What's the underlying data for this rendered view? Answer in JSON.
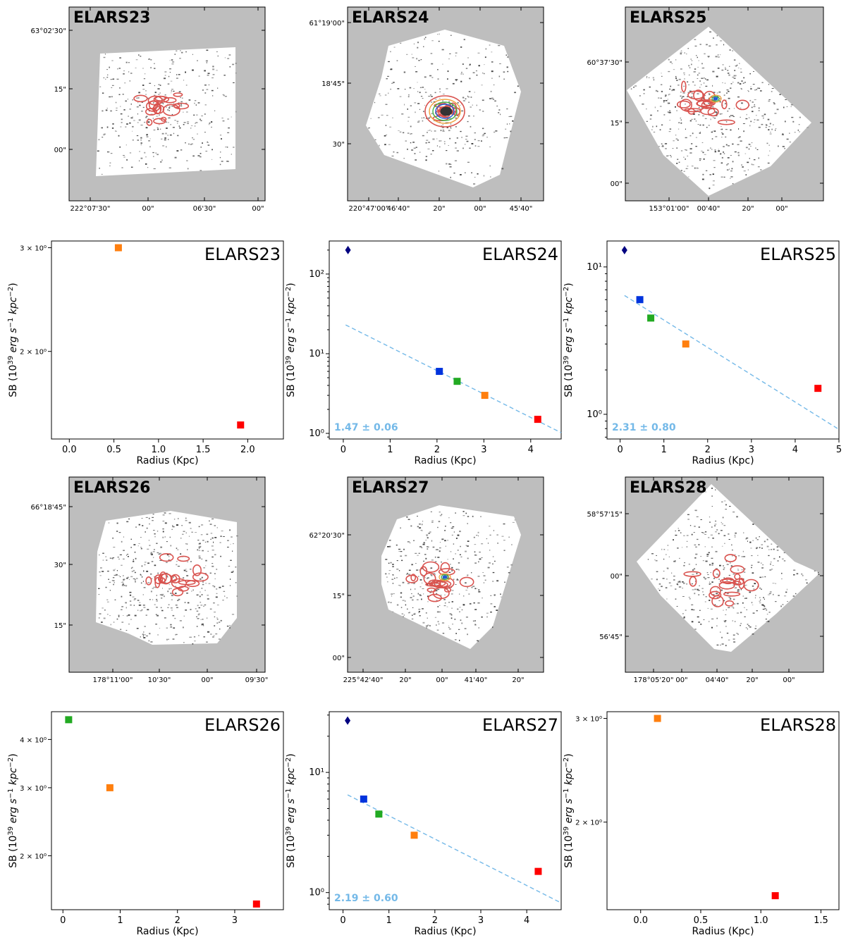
{
  "chart_data": [
    {
      "type": "image",
      "title": "ELARS23",
      "ra_labels": [
        "222°07'30\"",
        "00\"",
        "06'30\"",
        "00\""
      ],
      "dec_labels": [
        "63°02'30\"",
        "15\"",
        "00\""
      ]
    },
    {
      "type": "image",
      "title": "ELARS24",
      "ra_labels": [
        "220°47'00\"",
        "46'40\"",
        "20\"",
        "00\"",
        "45'40\""
      ],
      "dec_labels": [
        "61°19'00\"",
        "18'45\"",
        "30\""
      ]
    },
    {
      "type": "image",
      "title": "ELARS25",
      "ra_labels": [
        "153°01'00\"",
        "00'40\"",
        "20\"",
        "00\""
      ],
      "dec_labels": [
        "60°37'30\"",
        "15\"",
        "00\""
      ]
    },
    {
      "type": "scatter",
      "title": "ELARS23",
      "yscale": "log",
      "xlabel": "Radius (Kpc)",
      "ylabel": "SB (10^39 erg s^-1 kpc^-2)",
      "xlim": [
        -0.2,
        2.4
      ],
      "ylim": [
        1.42,
        3.08
      ],
      "xticks": [
        0.0,
        0.5,
        1.0,
        1.5,
        2.0
      ],
      "xtick_labels": [
        "0.0",
        "0.5",
        "1.0",
        "1.5",
        "2.0"
      ],
      "yticks": [
        2,
        3
      ],
      "ytick_labels": [
        "2 × 10⁰",
        "3 × 10⁰"
      ],
      "points": [
        {
          "x": 0.55,
          "y": 3.0,
          "color": "#ff7f0e",
          "marker": "square"
        },
        {
          "x": 1.92,
          "y": 1.5,
          "color": "#ff0000",
          "marker": "square"
        }
      ]
    },
    {
      "type": "scatter",
      "title": "ELARS24",
      "yscale": "log",
      "xlabel": "Radius (Kpc)",
      "ylabel": "SB (10^39 erg s^-1 kpc^-2)",
      "xlim": [
        -0.3,
        4.65
      ],
      "ylim": [
        0.85,
        260
      ],
      "xticks": [
        0,
        1,
        2,
        3,
        4
      ],
      "xtick_labels": [
        "0",
        "1",
        "2",
        "3",
        "4"
      ],
      "yticks": [
        1,
        10,
        100
      ],
      "ytick_labels": [
        "10⁰",
        "10¹",
        "10²"
      ],
      "points": [
        {
          "x": 0.1,
          "y": 200,
          "color": "#000080",
          "marker": "diamond"
        },
        {
          "x": 2.05,
          "y": 6.0,
          "color": "#0033dd",
          "marker": "square"
        },
        {
          "x": 2.43,
          "y": 4.5,
          "color": "#22aa22",
          "marker": "square"
        },
        {
          "x": 3.02,
          "y": 3.0,
          "color": "#ff7f0e",
          "marker": "square"
        },
        {
          "x": 4.15,
          "y": 1.5,
          "color": "#ff0000",
          "marker": "square"
        }
      ],
      "fit": {
        "x": [
          0.05,
          4.65
        ],
        "y": [
          23,
          1.02
        ],
        "color": "#74b9e8"
      },
      "fit_label": "1.47 ± 0.06"
    },
    {
      "type": "scatter",
      "title": "ELARS25",
      "yscale": "log",
      "xlabel": "Radius (Kpc)",
      "ylabel": "SB (10^39 erg s^-1 kpc^-2)",
      "xlim": [
        -0.3,
        5.0
      ],
      "ylim": [
        0.68,
        15.0
      ],
      "xticks": [
        0,
        1,
        2,
        3,
        4,
        5
      ],
      "xtick_labels": [
        "0",
        "1",
        "2",
        "3",
        "4",
        "5"
      ],
      "yticks": [
        1,
        10
      ],
      "ytick_labels": [
        "10⁰",
        "10¹"
      ],
      "points": [
        {
          "x": 0.1,
          "y": 13.0,
          "color": "#000080",
          "marker": "diamond"
        },
        {
          "x": 0.45,
          "y": 6.0,
          "color": "#0033dd",
          "marker": "square"
        },
        {
          "x": 0.7,
          "y": 4.5,
          "color": "#22aa22",
          "marker": "square"
        },
        {
          "x": 1.5,
          "y": 3.0,
          "color": "#ff7f0e",
          "marker": "square"
        },
        {
          "x": 4.52,
          "y": 1.5,
          "color": "#ff0000",
          "marker": "square"
        }
      ],
      "fit": {
        "x": [
          0.1,
          5.0
        ],
        "y": [
          6.4,
          0.79
        ],
        "color": "#74b9e8"
      },
      "fit_label": "2.31 ± 0.80"
    },
    {
      "type": "image",
      "title": "ELARS26",
      "ra_labels": [
        "178°11'00\"",
        "10'30\"",
        "00\"",
        "09'30\""
      ],
      "dec_labels": [
        "66°18'45\"",
        "30\"",
        "15\""
      ]
    },
    {
      "type": "image",
      "title": "ELARS27",
      "ra_labels": [
        "225°42'40\"",
        "20\"",
        "00\"",
        "41'40\"",
        "20\""
      ],
      "dec_labels": [
        "62°20'30\"",
        "15\"",
        "00\""
      ]
    },
    {
      "type": "image",
      "title": "ELARS28",
      "ra_labels": [
        "178°05'20\"",
        "00\"",
        "04'40\"",
        "20\"",
        "00\""
      ],
      "dec_labels": [
        "58°57'15\"",
        "00\"",
        "56'45\""
      ]
    },
    {
      "type": "scatter",
      "title": "ELARS26",
      "yscale": "log",
      "xlabel": "Radius (Kpc)",
      "ylabel": "SB (10^39 erg s^-1 kpc^-2)",
      "xlim": [
        -0.2,
        3.85
      ],
      "ylim": [
        1.45,
        4.72
      ],
      "xticks": [
        0,
        1,
        2,
        3
      ],
      "xtick_labels": [
        "0",
        "1",
        "2",
        "3"
      ],
      "yticks": [
        2,
        3,
        4
      ],
      "ytick_labels": [
        "2 × 10⁰",
        "3 × 10⁰",
        "4 × 10⁰"
      ],
      "points": [
        {
          "x": 0.1,
          "y": 4.5,
          "color": "#22aa22",
          "marker": "square"
        },
        {
          "x": 0.82,
          "y": 3.0,
          "color": "#ff7f0e",
          "marker": "square"
        },
        {
          "x": 3.38,
          "y": 1.5,
          "color": "#ff0000",
          "marker": "square"
        }
      ]
    },
    {
      "type": "scatter",
      "title": "ELARS27",
      "yscale": "log",
      "xlabel": "Radius (Kpc)",
      "ylabel": "SB (10^39 erg s^-1 kpc^-2)",
      "xlim": [
        -0.3,
        4.75
      ],
      "ylim": [
        0.72,
        32.0
      ],
      "xticks": [
        0,
        1,
        2,
        3,
        4
      ],
      "xtick_labels": [
        "0",
        "1",
        "2",
        "3",
        "4"
      ],
      "yticks": [
        1,
        10
      ],
      "ytick_labels": [
        "10⁰",
        "10¹"
      ],
      "points": [
        {
          "x": 0.1,
          "y": 27.0,
          "color": "#000080",
          "marker": "diamond"
        },
        {
          "x": 0.45,
          "y": 6.0,
          "color": "#0033dd",
          "marker": "square"
        },
        {
          "x": 0.78,
          "y": 4.5,
          "color": "#22aa22",
          "marker": "square"
        },
        {
          "x": 1.55,
          "y": 3.0,
          "color": "#ff7f0e",
          "marker": "square"
        },
        {
          "x": 4.25,
          "y": 1.5,
          "color": "#ff0000",
          "marker": "square"
        }
      ],
      "fit": {
        "x": [
          0.1,
          4.75
        ],
        "y": [
          6.5,
          0.82
        ],
        "color": "#74b9e8"
      },
      "fit_label": "2.19 ± 0.60"
    },
    {
      "type": "scatter",
      "title": "ELARS28",
      "yscale": "log",
      "xlabel": "Radius (Kpc)",
      "ylabel": "SB (10^39 erg s^-1 kpc^-2)",
      "xlim": [
        -0.28,
        1.65
      ],
      "ylim": [
        1.42,
        3.08
      ],
      "xticks": [
        0.0,
        0.5,
        1.0,
        1.5
      ],
      "xtick_labels": [
        "0.0",
        "0.5",
        "1.0",
        "1.5"
      ],
      "yticks": [
        2,
        3
      ],
      "ytick_labels": [
        "2 × 10⁰",
        "3 × 10⁰"
      ],
      "points": [
        {
          "x": 0.14,
          "y": 3.0,
          "color": "#ff7f0e",
          "marker": "square"
        },
        {
          "x": 1.12,
          "y": 1.5,
          "color": "#ff0000",
          "marker": "square"
        }
      ]
    }
  ]
}
